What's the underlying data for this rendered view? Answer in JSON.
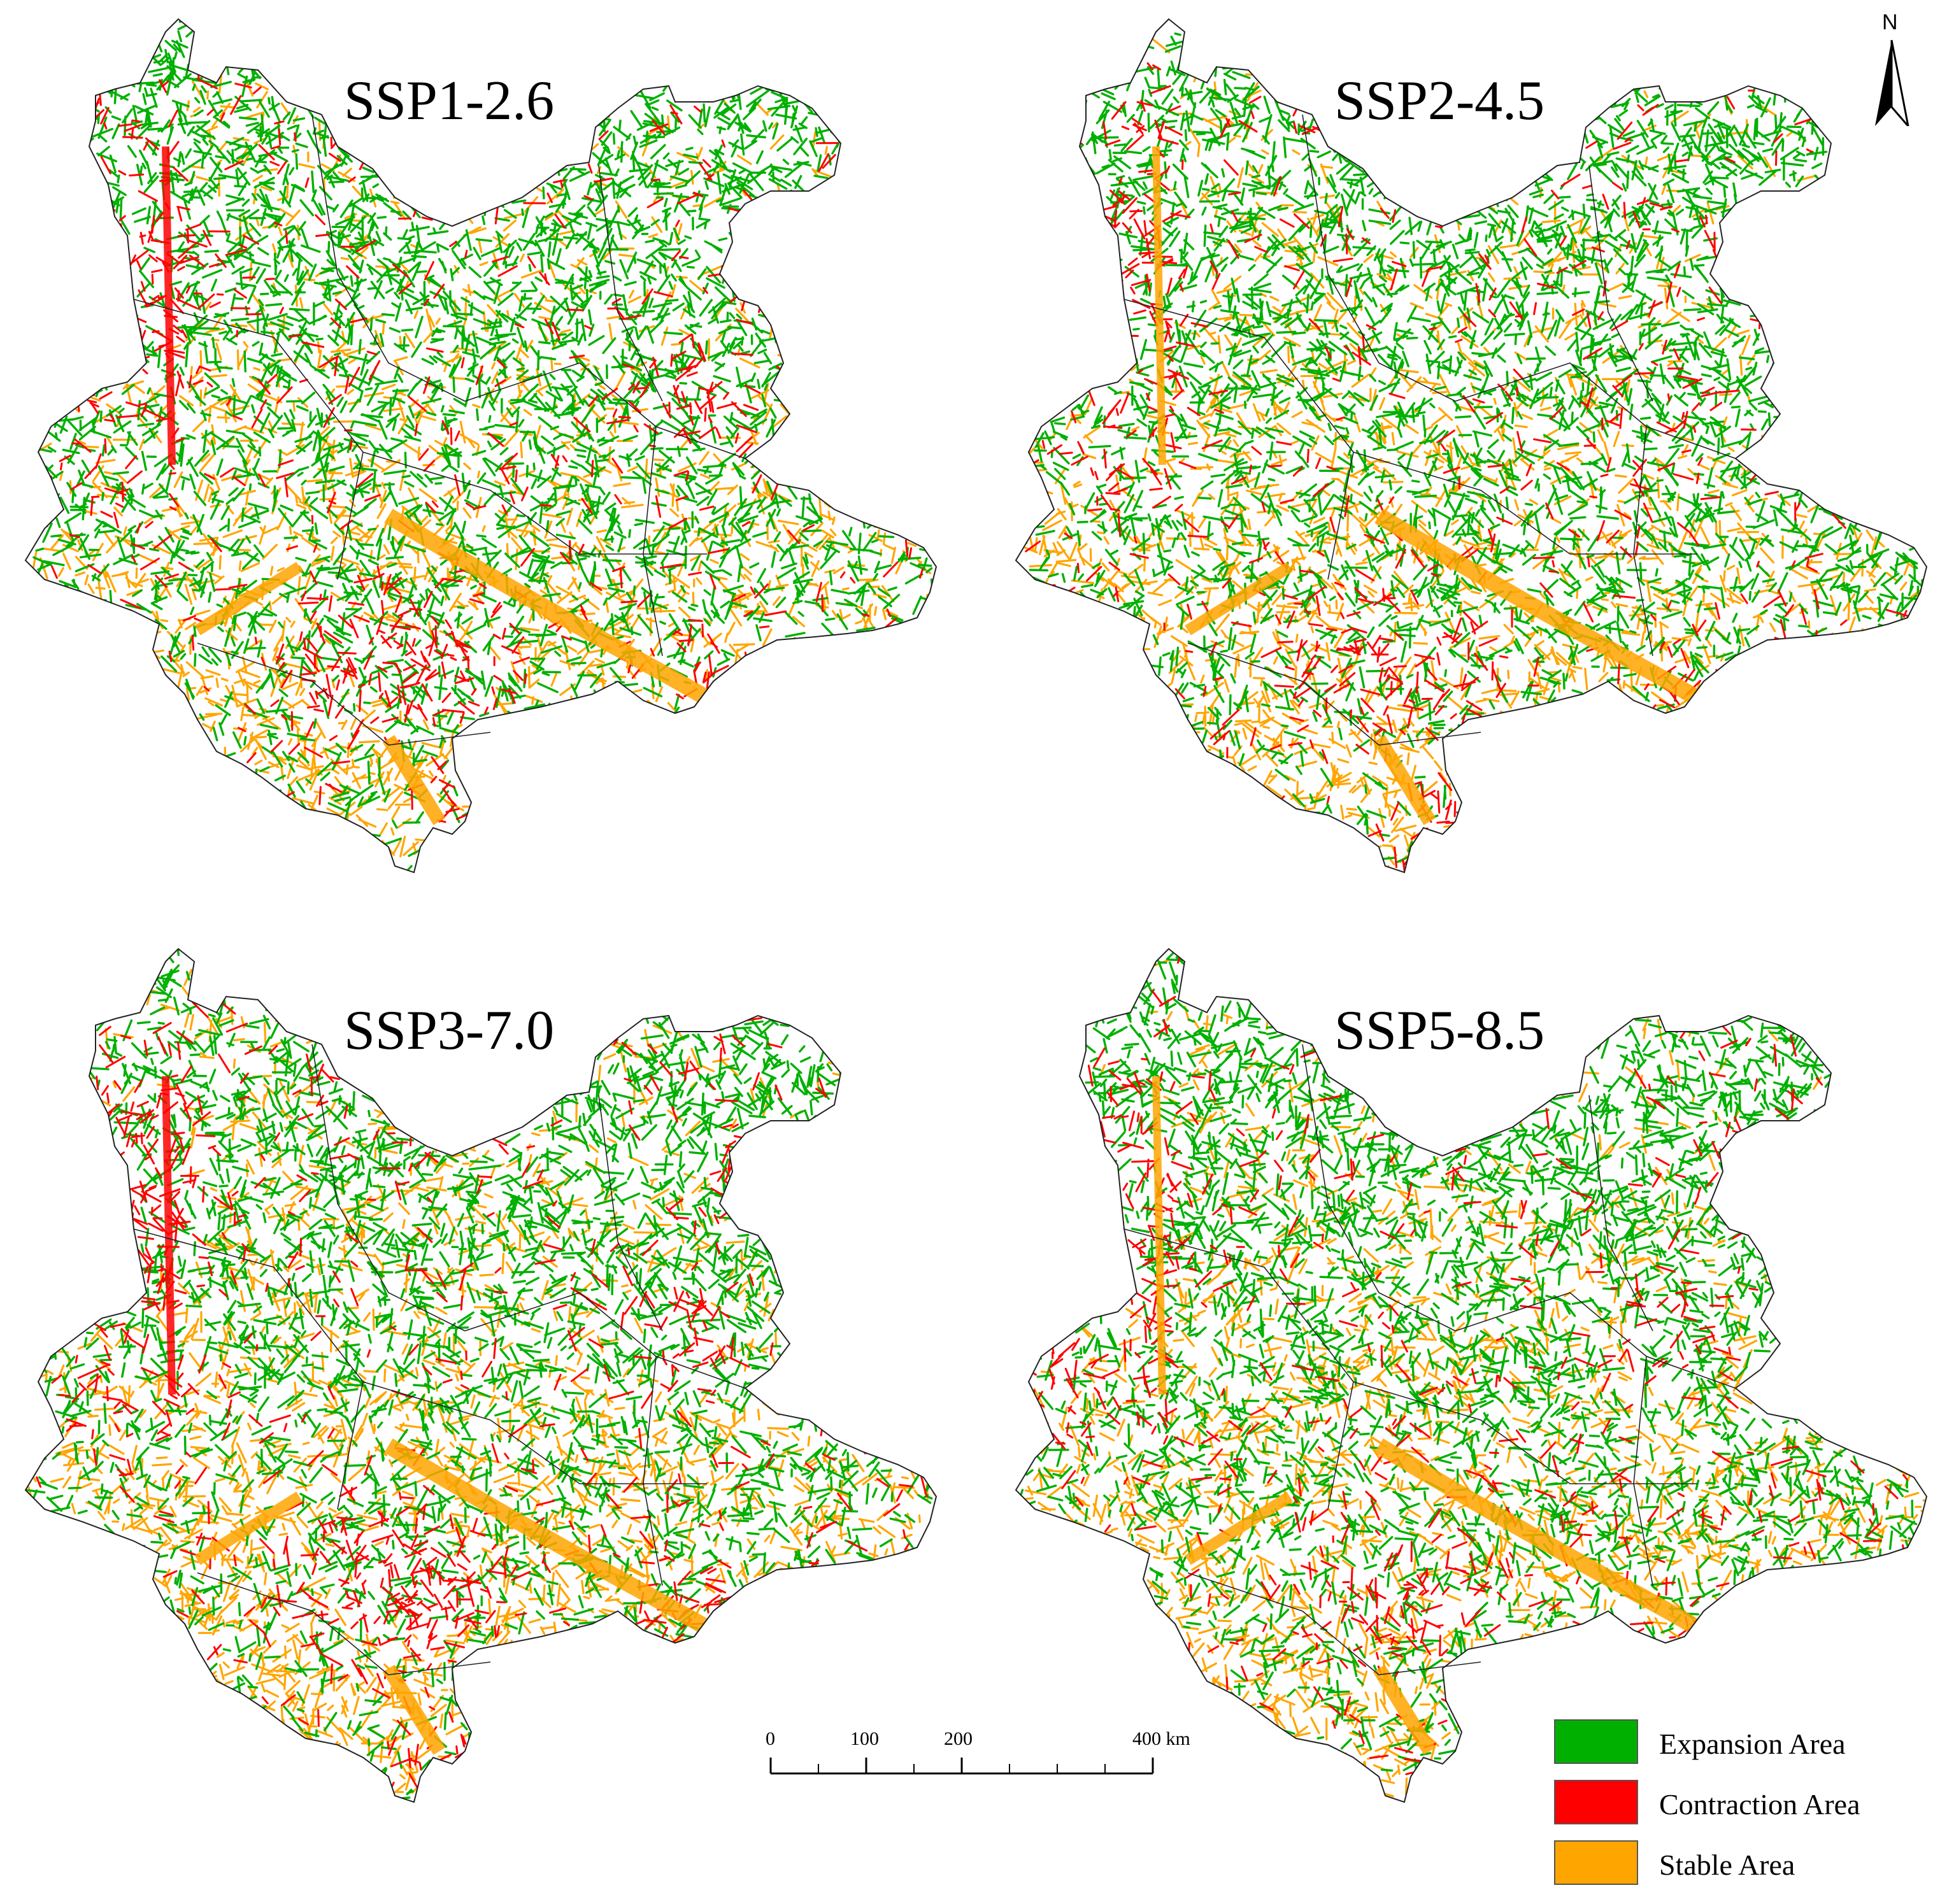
{
  "panels": [
    {
      "title": "SSP1-2.6"
    },
    {
      "title": "SSP2-4.5"
    },
    {
      "title": "SSP3-7.0"
    },
    {
      "title": "SSP5-8.5"
    }
  ],
  "north_arrow": {
    "label": "N"
  },
  "scale_bar": {
    "ticks": [
      "0",
      "100",
      "200",
      "400 km"
    ]
  },
  "legend": {
    "items": [
      {
        "label": "Expansion Area",
        "color": "#00b000"
      },
      {
        "label": "Contraction Area",
        "color": "#ff0000"
      },
      {
        "label": "Stable Area",
        "color": "#ffa500"
      }
    ]
  },
  "colors": {
    "expansion": "#00b000",
    "contraction": "#ff0000",
    "stable": "#ffa500",
    "boundary": "#222222"
  }
}
